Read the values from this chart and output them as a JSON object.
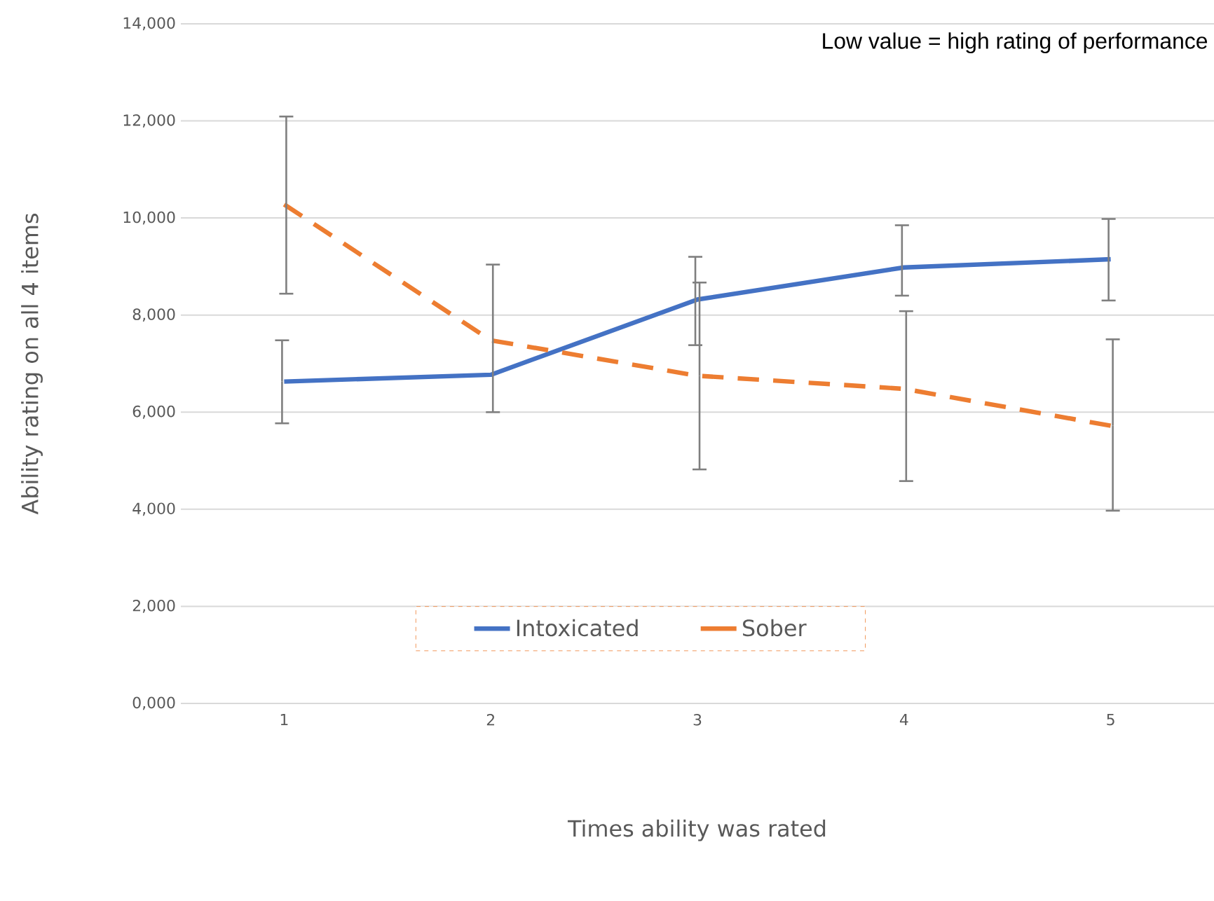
{
  "chart_data": {
    "type": "line",
    "xlabel": "Times ability was rated",
    "ylabel": "Ability rating on all 4 items",
    "annotations": [
      "Low value = high rating of performance"
    ],
    "categories": [
      "1",
      "2",
      "3",
      "4",
      "5"
    ],
    "series": [
      {
        "name": "Intoxicated",
        "color": "#4472c4",
        "line_style": "solid",
        "values": [
          6630,
          6770,
          8320,
          8980,
          9150
        ],
        "errors": [
          [
            5770,
            7480
          ],
          null,
          [
            7380,
            9200
          ],
          [
            8400,
            9850
          ],
          [
            8300,
            9980
          ]
        ]
      },
      {
        "name": "Sober",
        "color": "#ed7d31",
        "line_style": "dashed",
        "values": [
          10280,
          7480,
          6750,
          6480,
          5720
        ],
        "errors": [
          [
            8440,
            12090
          ],
          [
            6000,
            9040
          ],
          [
            4820,
            8670
          ],
          [
            4580,
            8080
          ],
          [
            3970,
            7500
          ]
        ]
      }
    ],
    "ylim": [
      0,
      14000
    ],
    "yticks": [
      {
        "value": 0,
        "label": "0,000"
      },
      {
        "value": 2000,
        "label": "2,000"
      },
      {
        "value": 4000,
        "label": "4,000"
      },
      {
        "value": 6000,
        "label": "6,000"
      },
      {
        "value": 8000,
        "label": "8,000"
      },
      {
        "value": 10000,
        "label": "10,000"
      },
      {
        "value": 12000,
        "label": "12,000"
      },
      {
        "value": 14000,
        "label": "14,000"
      }
    ],
    "grid": "y",
    "legend": "bottom",
    "marker": "none"
  }
}
